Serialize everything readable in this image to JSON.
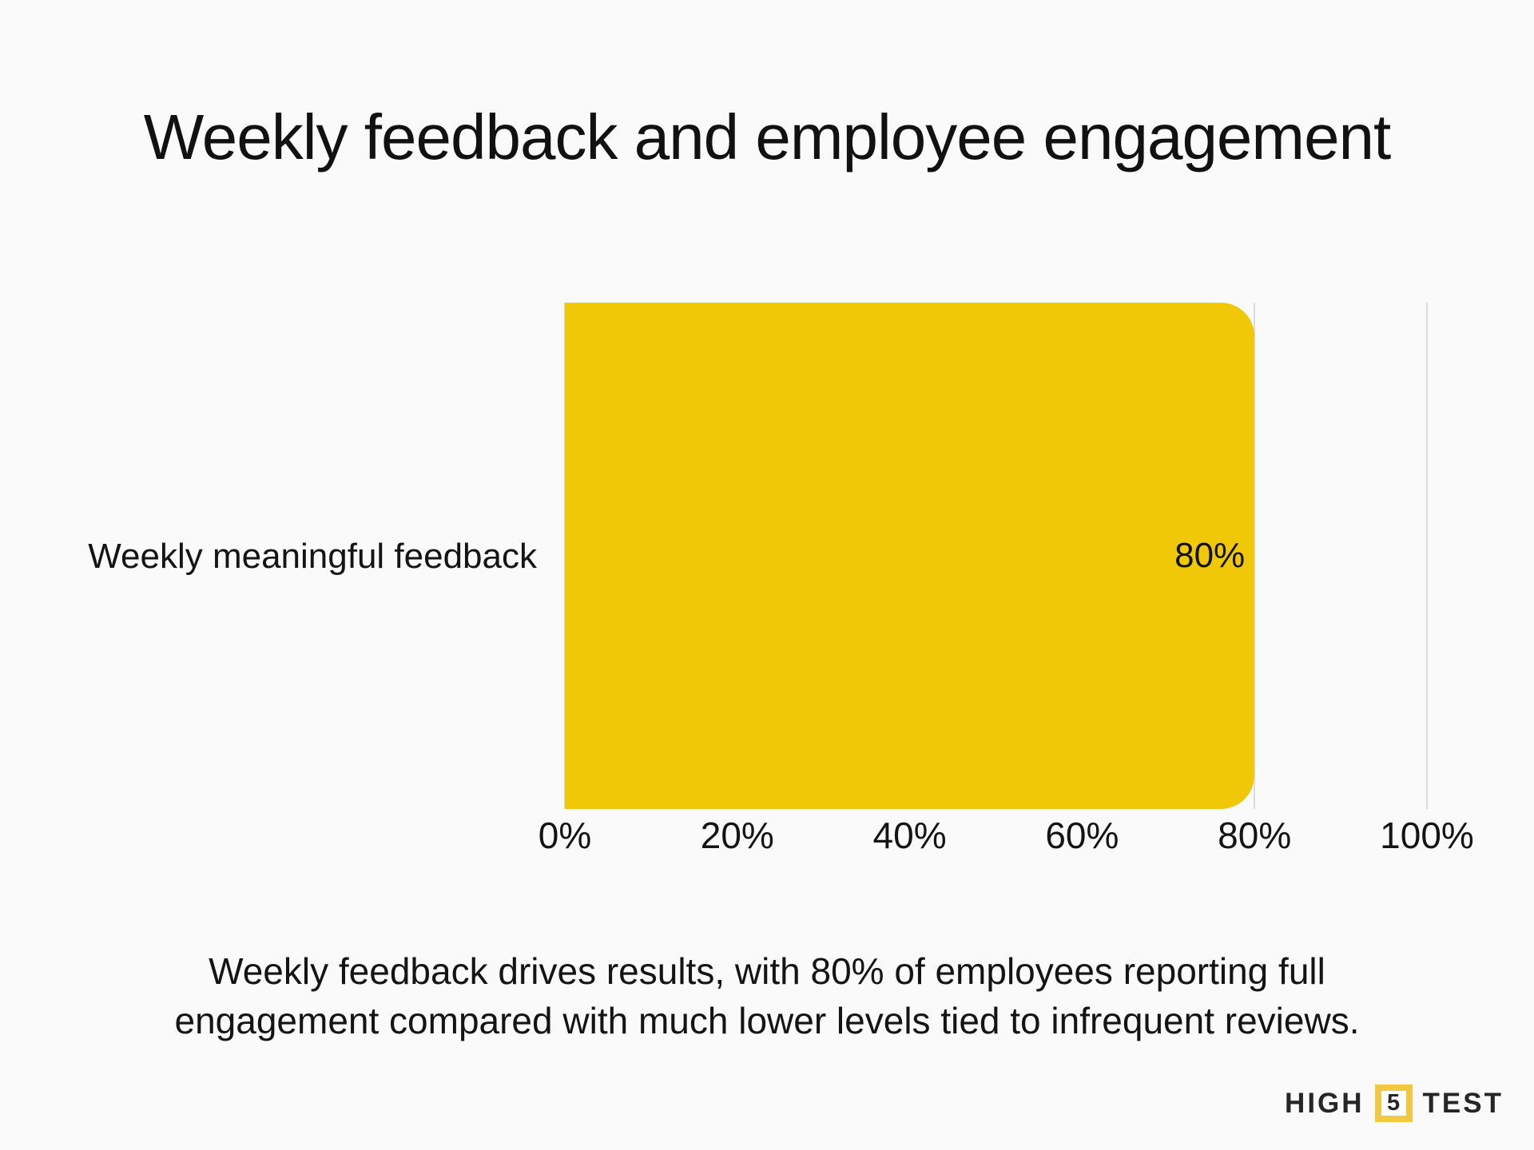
{
  "title": "Weekly feedback and employee engagement",
  "caption": {
    "lines": [
      "Weekly feedback drives results, with 80% of employees reporting full",
      "engagement compared with much lower levels tied to infrequent reviews."
    ]
  },
  "logo": {
    "high": "HIGH",
    "five": "5",
    "test": "TEST",
    "square_color": "#f2c843"
  },
  "colors": {
    "background": "#fafafa",
    "bar": "#f0c808",
    "gridline": "#dbdbdb",
    "text": "#141414"
  },
  "chart_data": {
    "type": "bar",
    "orientation": "horizontal",
    "title": "Weekly feedback and employee engagement",
    "categories": [
      "Weekly meaningful feedback"
    ],
    "values": [
      80
    ],
    "value_labels": [
      "80%"
    ],
    "xlabel": "",
    "ylabel": "",
    "xlim": [
      0,
      100
    ],
    "x_ticks": [
      0,
      20,
      40,
      60,
      80,
      100
    ],
    "x_tick_labels": [
      "0%",
      "20%",
      "40%",
      "60%",
      "80%",
      "100%"
    ],
    "grid": true,
    "legend": false,
    "bar_color": "#f0c808",
    "annotation": "Weekly feedback drives results, with 80% of employees reporting full engagement compared with much lower levels tied to infrequent reviews."
  }
}
